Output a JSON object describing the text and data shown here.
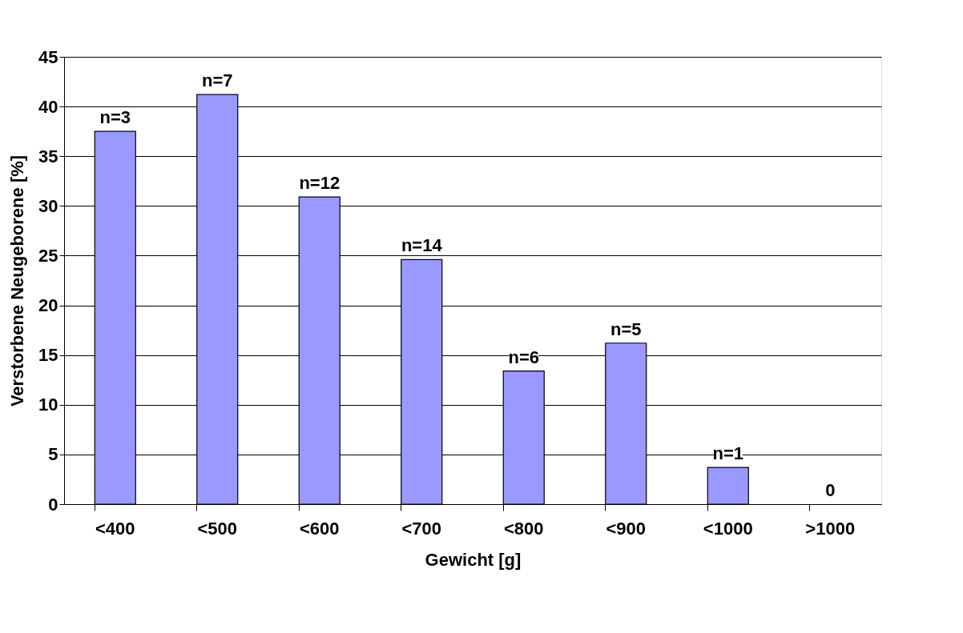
{
  "chart_data": {
    "type": "bar",
    "xlabel": "Gewicht [g]",
    "ylabel": "Verstorbene Neugeborene [%]",
    "categories": [
      "<400",
      "<500",
      "<600",
      "<700",
      "<800",
      "<900",
      "<1000",
      ">1000"
    ],
    "values": [
      37.5,
      41.2,
      30.9,
      24.6,
      13.4,
      16.2,
      3.7,
      0
    ],
    "annotations": [
      {
        "text": "n=3",
        "x": "<400",
        "y": 37.5
      },
      {
        "text": "n=7",
        "x": "<500",
        "y": 41.2
      },
      {
        "text": "n=12",
        "x": "<600",
        "y": 30.9
      },
      {
        "text": "n=14",
        "x": "<700",
        "y": 24.6
      },
      {
        "text": "n=6",
        "x": "<800",
        "y": 13.4
      },
      {
        "text": "n=5",
        "x": "<900",
        "y": 16.2
      },
      {
        "text": "n=1",
        "x": "<1000",
        "y": 3.7
      },
      {
        "text": "0",
        "x": ">1000",
        "y": 0
      }
    ],
    "color": "#9999ff",
    "ylim": [
      0,
      45
    ],
    "yticks": [
      0,
      5,
      10,
      15,
      20,
      25,
      30,
      35,
      40,
      45
    ],
    "grid": "y"
  }
}
